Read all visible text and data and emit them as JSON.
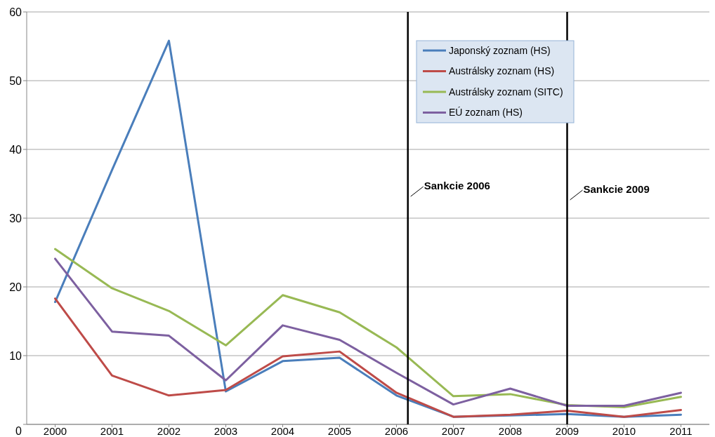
{
  "chart_data": {
    "type": "line",
    "x": [
      2000,
      2001,
      2002,
      2003,
      2004,
      2005,
      2006,
      2007,
      2008,
      2009,
      2010,
      2011
    ],
    "xlim": [
      1999.5,
      2011.5
    ],
    "xticks": [
      2000,
      2001,
      2002,
      2003,
      2004,
      2005,
      2006,
      2007,
      2008,
      2009,
      2010,
      2011
    ],
    "ylim": [
      0,
      60
    ],
    "yticks": [
      0,
      10,
      20,
      30,
      40,
      50,
      60
    ],
    "grid": "y",
    "legend": "top",
    "marker": "none",
    "line_style": "solid",
    "series": [
      {
        "name": "Japonský zoznam (HS)",
        "color": "#4a7ebb",
        "values": [
          17.8,
          37,
          55.8,
          4.8,
          9.2,
          9.7,
          4.2,
          1.1,
          1.3,
          1.5,
          1.1,
          1.4
        ]
      },
      {
        "name": "Austrálsky zoznam (HS)",
        "color": "#be4b48",
        "values": [
          18.3,
          7.1,
          4.2,
          5.0,
          9.9,
          10.6,
          4.6,
          1.1,
          1.4,
          2.0,
          1.1,
          2.1
        ]
      },
      {
        "name": "Austrálsky zoznam (SITC)",
        "color": "#98b954",
        "values": [
          25.5,
          19.8,
          16.5,
          11.5,
          18.8,
          16.3,
          11.2,
          4.1,
          4.4,
          2.8,
          2.5,
          4.0
        ]
      },
      {
        "name": "EÚ zoznam (HS)",
        "color": "#7d60a0",
        "values": [
          24.1,
          13.5,
          12.9,
          6.4,
          14.4,
          12.3,
          7.5,
          2.9,
          5.2,
          2.7,
          2.7,
          4.6
        ]
      }
    ],
    "ref_lines": [
      {
        "axis": "x",
        "value": 2006.2,
        "label": "Sankcie 2006",
        "color": "#000000"
      },
      {
        "axis": "x",
        "value": 2009,
        "label": "Sankcie 2009",
        "color": "#000000"
      }
    ]
  }
}
